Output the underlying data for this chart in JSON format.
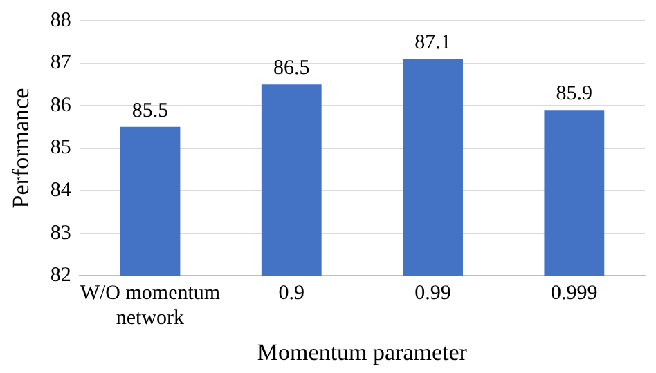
{
  "chart_data": {
    "type": "bar",
    "xlabel": "Momentum parameter",
    "ylabel": "Performance",
    "categories": [
      "W/O momentum network",
      "0.9",
      "0.99",
      "0.999"
    ],
    "values": [
      85.5,
      86.5,
      87.1,
      85.9
    ],
    "color": "#4472c4",
    "ylim": [
      82,
      88
    ],
    "yticks": [
      82,
      83,
      84,
      85,
      86,
      87,
      88
    ],
    "grid": "y",
    "data_labels": true,
    "legend": false
  }
}
